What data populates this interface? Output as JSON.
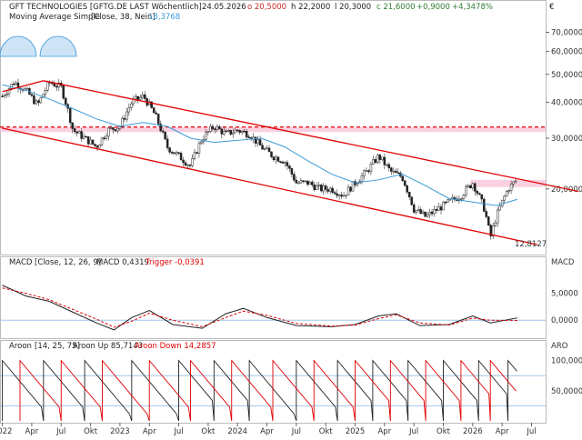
{
  "header": {
    "instrument": "GFT TECHNOLOGIES [GFTG.DE LAST Wöchentlich]",
    "date": "24.05.2026",
    "open": "o 20,5000",
    "high": "h 22,2000",
    "low": "l 20,3000",
    "close": "c 21,6000",
    "change": "+0,9000",
    "change_pct": "+4,3478%",
    "currency": "€"
  },
  "colors": {
    "up": "#2e7d32",
    "down": "#c62828",
    "channel": "#e00000",
    "ma": "#3a9ad9",
    "trigger": "#e00000",
    "aroon_down": "#e00000",
    "aroon_up": "#222222",
    "grid_blue": "#9ec8ee",
    "zone": "#f7c6dc"
  },
  "chart_data": [
    {
      "type": "candlestick",
      "name": "price",
      "indicator_label": "Moving Average Simple",
      "indicator_params": "[Close, 38, Nein]",
      "indicator_value": "18,3768",
      "y_scale": "log",
      "ylim": [
        12,
        75
      ],
      "y_ticks": [
        "70,0000",
        "60,0000",
        "50,0000",
        "40,0000",
        "30,0000",
        "20,0000"
      ],
      "y_tick_values": [
        70,
        60,
        50,
        40,
        30,
        20
      ],
      "last_low_label": "12,8127",
      "resistance_band": [
        31.5,
        32.8
      ],
      "resistance_line": 32.8,
      "support_zone": [
        20.3,
        21.5
      ],
      "channel_upper": [
        [
          2022.35,
          47.5
        ],
        [
          2026.9,
          19.6
        ]
      ],
      "channel_lower": [
        [
          2022.0,
          32.5
        ],
        [
          2026.55,
          12.8
        ]
      ],
      "channel_mid": [
        [
          2022.0,
          43.5
        ],
        [
          2022.35,
          47.5
        ]
      ],
      "weekly_closes": [
        [
          2022.0,
          42
        ],
        [
          2022.1,
          47
        ],
        [
          2022.2,
          44
        ],
        [
          2022.3,
          39
        ],
        [
          2022.4,
          47
        ],
        [
          2022.5,
          45
        ],
        [
          2022.6,
          32
        ],
        [
          2022.7,
          30
        ],
        [
          2022.8,
          28
        ],
        [
          2022.9,
          32
        ],
        [
          2023.0,
          33
        ],
        [
          2023.1,
          40
        ],
        [
          2023.2,
          42
        ],
        [
          2023.3,
          36
        ],
        [
          2023.4,
          28
        ],
        [
          2023.5,
          26
        ],
        [
          2023.6,
          24
        ],
        [
          2023.7,
          30
        ],
        [
          2023.8,
          33
        ],
        [
          2023.9,
          31
        ],
        [
          2024.0,
          32
        ],
        [
          2024.1,
          31
        ],
        [
          2024.2,
          28
        ],
        [
          2024.3,
          26
        ],
        [
          2024.4,
          25
        ],
        [
          2024.5,
          21
        ],
        [
          2024.6,
          21
        ],
        [
          2024.7,
          20
        ],
        [
          2024.8,
          20
        ],
        [
          2024.9,
          19
        ],
        [
          2025.0,
          21
        ],
        [
          2025.1,
          23
        ],
        [
          2025.2,
          26
        ],
        [
          2025.3,
          23
        ],
        [
          2025.4,
          22
        ],
        [
          2025.5,
          17
        ],
        [
          2025.6,
          16
        ],
        [
          2025.7,
          17
        ],
        [
          2025.8,
          18
        ],
        [
          2025.9,
          19
        ],
        [
          2026.0,
          21
        ],
        [
          2026.1,
          17
        ],
        [
          2026.15,
          13.5
        ],
        [
          2026.2,
          16
        ],
        [
          2026.3,
          20
        ],
        [
          2026.38,
          21.6
        ]
      ],
      "ma_points": [
        [
          2022.0,
          46
        ],
        [
          2022.2,
          44
        ],
        [
          2022.4,
          41
        ],
        [
          2022.6,
          38
        ],
        [
          2022.8,
          35
        ],
        [
          2023.0,
          33
        ],
        [
          2023.2,
          34
        ],
        [
          2023.4,
          33
        ],
        [
          2023.6,
          30
        ],
        [
          2023.8,
          29
        ],
        [
          2024.0,
          29.5
        ],
        [
          2024.2,
          30
        ],
        [
          2024.4,
          28
        ],
        [
          2024.6,
          25
        ],
        [
          2024.8,
          22.5
        ],
        [
          2025.0,
          21
        ],
        [
          2025.2,
          21.5
        ],
        [
          2025.4,
          22.5
        ],
        [
          2025.6,
          20.5
        ],
        [
          2025.8,
          18.5
        ],
        [
          2026.0,
          18
        ],
        [
          2026.2,
          17.5
        ],
        [
          2026.38,
          18.4
        ]
      ]
    },
    {
      "type": "line",
      "name": "macd",
      "label": "MACD",
      "params": "[Close, 12, 26, 9]",
      "value_label": "MACD 0,4319",
      "trigger_label": "Trigger -0,0391",
      "axis_title": "MACD",
      "y_ticks": [
        "5,0000",
        "0,0000"
      ],
      "y_tick_values": [
        5,
        0
      ],
      "ylim": [
        -3,
        9.5
      ],
      "series": [
        {
          "name": "MACD",
          "points": [
            [
              2022.0,
              6.5
            ],
            [
              2022.2,
              4.5
            ],
            [
              2022.4,
              3.5
            ],
            [
              2022.6,
              1.5
            ],
            [
              2022.8,
              -0.5
            ],
            [
              2022.95,
              -1.8
            ],
            [
              2023.1,
              0.5
            ],
            [
              2023.25,
              1.8
            ],
            [
              2023.45,
              -0.8
            ],
            [
              2023.7,
              -1.5
            ],
            [
              2023.9,
              1.2
            ],
            [
              2024.05,
              2.2
            ],
            [
              2024.25,
              0.5
            ],
            [
              2024.5,
              -1.0
            ],
            [
              2024.8,
              -1.2
            ],
            [
              2025.0,
              -0.8
            ],
            [
              2025.2,
              0.8
            ],
            [
              2025.35,
              1.2
            ],
            [
              2025.55,
              -1.0
            ],
            [
              2025.8,
              -0.8
            ],
            [
              2026.0,
              0.8
            ],
            [
              2026.15,
              -0.5
            ],
            [
              2026.38,
              0.43
            ]
          ]
        },
        {
          "name": "Trigger",
          "points": [
            [
              2022.0,
              6.0
            ],
            [
              2022.2,
              5.0
            ],
            [
              2022.4,
              3.8
            ],
            [
              2022.6,
              2.0
            ],
            [
              2022.8,
              0.2
            ],
            [
              2022.95,
              -1.3
            ],
            [
              2023.1,
              -0.2
            ],
            [
              2023.25,
              1.3
            ],
            [
              2023.45,
              0.0
            ],
            [
              2023.7,
              -1.2
            ],
            [
              2023.9,
              0.5
            ],
            [
              2024.05,
              1.7
            ],
            [
              2024.25,
              0.9
            ],
            [
              2024.5,
              -0.6
            ],
            [
              2024.8,
              -1.1
            ],
            [
              2025.0,
              -0.9
            ],
            [
              2025.2,
              0.3
            ],
            [
              2025.35,
              1.0
            ],
            [
              2025.55,
              -0.5
            ],
            [
              2025.8,
              -0.9
            ],
            [
              2026.0,
              0.4
            ],
            [
              2026.15,
              0.0
            ],
            [
              2026.38,
              -0.04
            ]
          ]
        }
      ]
    },
    {
      "type": "line",
      "name": "aroon",
      "label": "Aroon",
      "params": "[14, 25, 75]",
      "up_label": "Aroon Up 85,7143",
      "down_label": "Aroon Down 14,2857",
      "axis_title": "ARO",
      "y_ticks": [
        "100,0000",
        "50,0000"
      ],
      "y_tick_values": [
        100,
        50
      ],
      "ylim": [
        0,
        110
      ],
      "levels": [
        75,
        25
      ],
      "series": [
        {
          "name": "Aroon Up",
          "cycle_starts": [
            2022.0,
            2022.35,
            2022.7,
            2023.1,
            2023.5,
            2023.8,
            2024.1,
            2024.5,
            2024.85,
            2025.15,
            2025.45,
            2025.75,
            2026.05,
            2026.3
          ],
          "current": 85.7143
        },
        {
          "name": "Aroon Down",
          "cycle_starts": [
            2022.15,
            2022.5,
            2022.85,
            2023.25,
            2023.6,
            2023.95,
            2024.3,
            2024.65,
            2025.0,
            2025.3,
            2025.6,
            2025.9,
            2026.15
          ],
          "current": 14.2857
        }
      ]
    }
  ],
  "x_axis": {
    "labels": [
      "2022",
      "Apr",
      "Jul",
      "Okt",
      "2023",
      "Apr",
      "Jul",
      "Okt",
      "2024",
      "Apr",
      "Jul",
      "Okt",
      "2025",
      "Apr",
      "Jul",
      "Okt",
      "2026",
      "Apr",
      "Jul"
    ],
    "values": [
      2022.0,
      2022.25,
      2022.5,
      2022.75,
      2023.0,
      2023.25,
      2023.5,
      2023.75,
      2024.0,
      2024.25,
      2024.5,
      2024.75,
      2025.0,
      2025.25,
      2025.5,
      2025.75,
      2026.0,
      2026.25,
      2026.5
    ],
    "range": [
      2021.98,
      2026.62
    ]
  }
}
